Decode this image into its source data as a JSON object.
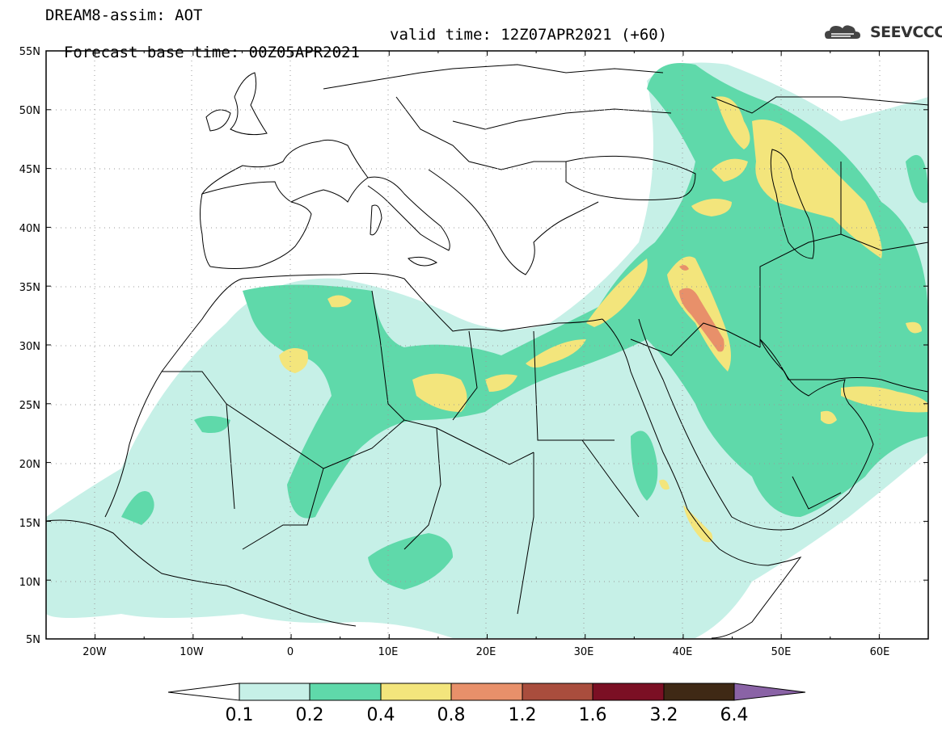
{
  "header": {
    "title": "DREAM8-assim: AOT",
    "base_time": "Forecast base time: 00Z05APR2021",
    "valid_time": "valid time: 12Z07APR2021 (+60)",
    "logo_text": "SEEVCCC"
  },
  "map": {
    "lon_range": [
      -25,
      65
    ],
    "lat_range": [
      5,
      55
    ],
    "lon_ticks": [
      "20W",
      "10W",
      "0",
      "10E",
      "20E",
      "30E",
      "40E",
      "50E",
      "60E"
    ],
    "lat_ticks": [
      "55N",
      "50N",
      "45N",
      "40N",
      "35N",
      "30N",
      "25N",
      "20N",
      "15N",
      "10N",
      "5N"
    ],
    "grid": true
  },
  "colorbar": {
    "labels": [
      "0.1",
      "0.2",
      "0.4",
      "0.8",
      "1.2",
      "1.6",
      "3.2",
      "6.4"
    ],
    "colors": [
      "#ffffff",
      "#c6f0e7",
      "#5fd9aa",
      "#f3e57c",
      "#e8906a",
      "#a94d3d",
      "#7b0f24",
      "#3f2915",
      "#8a63a6"
    ]
  },
  "colors": {
    "frame": "#000000",
    "grid": "#999999",
    "coast": "#000000"
  }
}
